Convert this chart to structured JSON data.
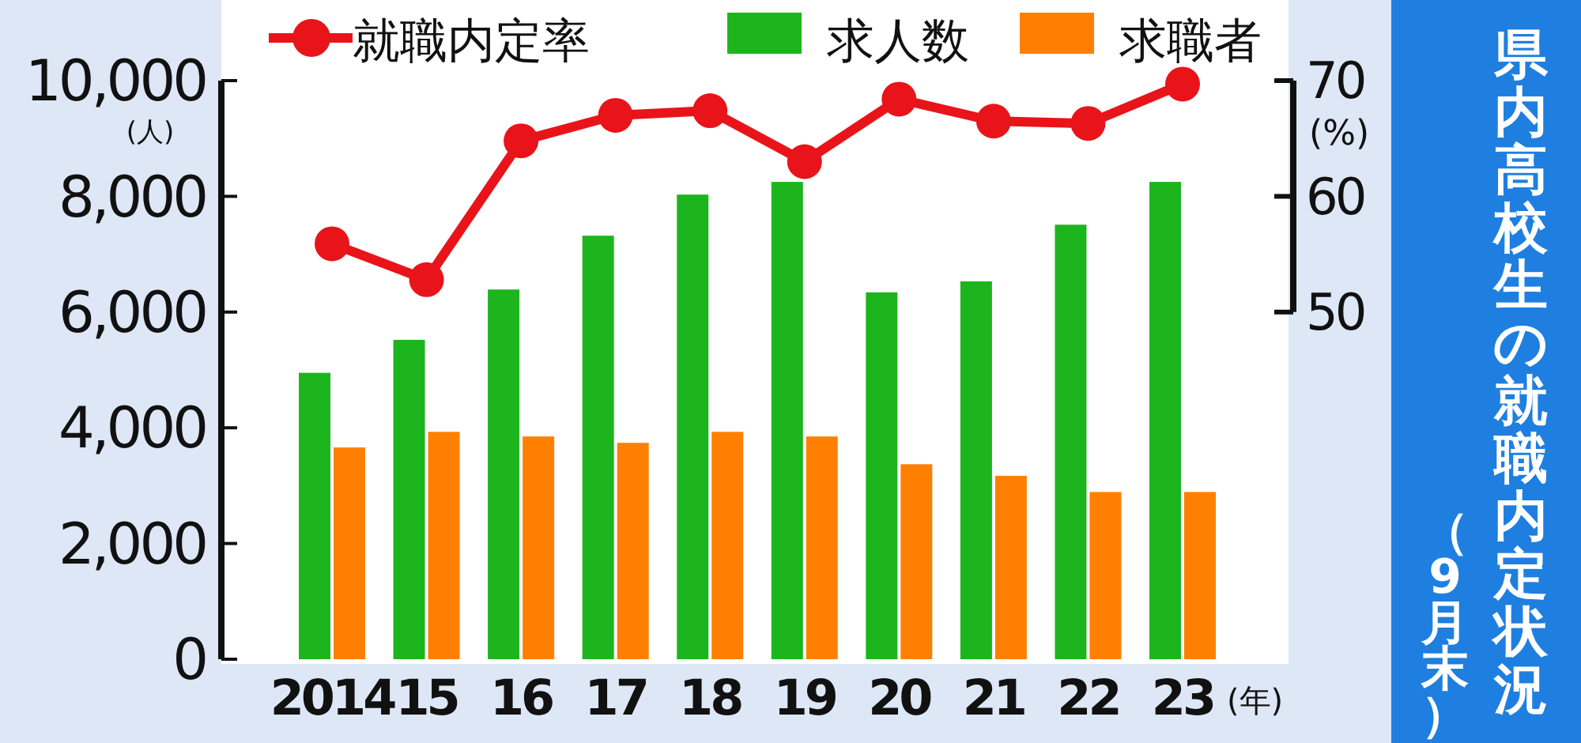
{
  "chart_data": {
    "type": "bar",
    "title": "県内高校生の就職内定状況（9月末）",
    "categories": [
      "2014",
      "15",
      "16",
      "17",
      "18",
      "19",
      "20",
      "21",
      "22",
      "23"
    ],
    "xlabel": "(年)",
    "ylabel": "(人)",
    "y2label": "(%)",
    "series": [
      {
        "name": "就職内定率",
        "type": "line",
        "axis": "y2",
        "color": "#e8141a",
        "values": [
          55.9,
          52.8,
          64.8,
          67.0,
          67.4,
          63.0,
          68.4,
          66.5,
          66.3,
          69.7
        ]
      },
      {
        "name": "求人数",
        "color": "#1db51d",
        "values": [
          4950,
          5520,
          6390,
          7320,
          8030,
          8250,
          6340,
          6530,
          7510,
          8250
        ]
      },
      {
        "name": "求職者",
        "color": "#ff8000",
        "values": [
          3660,
          3930,
          3850,
          3740,
          3930,
          3850,
          3370,
          3170,
          2890,
          2890
        ]
      }
    ],
    "ylim": [
      0,
      10000
    ],
    "yticks": [
      {
        "value": 0,
        "label": "0"
      },
      {
        "value": 2000,
        "label": "2,000"
      },
      {
        "value": 4000,
        "label": "4,000"
      },
      {
        "value": 6000,
        "label": "6,000"
      },
      {
        "value": 8000,
        "label": "8,000"
      },
      {
        "value": 10000,
        "label": "10,000"
      }
    ],
    "y2lim": [
      20,
      70
    ],
    "y2ticks": [
      50,
      60,
      70
    ],
    "marker": "circle",
    "legend": "top",
    "grid": false
  }
}
